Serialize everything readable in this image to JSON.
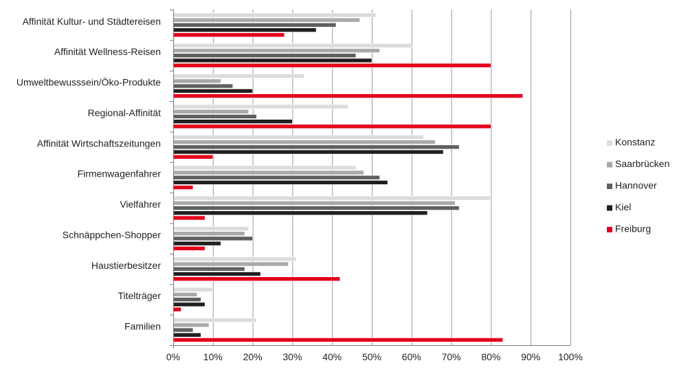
{
  "chart_data": {
    "type": "bar",
    "orientation": "horizontal",
    "categories": [
      "Affinität Kultur- und Städtereisen",
      "Affinität Wellness-Reisen",
      "Umweltbewusssein/Öko-Produkte",
      "Regional-Affinität",
      "Affinität Wirtschaftszeitungen",
      "Firmenwagenfahrer",
      "Vielfahrer",
      "Schnäppchen-Shopper",
      "Haustierbesitzer",
      "Titelträger",
      "Familien"
    ],
    "series": [
      {
        "name": "Konstanz",
        "color": "#dcdcdc",
        "values": [
          51,
          60,
          33,
          44,
          63,
          46,
          80,
          19,
          31,
          10,
          21
        ]
      },
      {
        "name": "Saarbrücken",
        "color": "#a9a9a9",
        "values": [
          47,
          52,
          12,
          19,
          66,
          48,
          71,
          18,
          29,
          6,
          9
        ]
      },
      {
        "name": "Hannover",
        "color": "#5f5f5f",
        "values": [
          41,
          46,
          15,
          21,
          72,
          52,
          72,
          20,
          18,
          7,
          5
        ]
      },
      {
        "name": "Kiel",
        "color": "#1f1f1f",
        "values": [
          36,
          50,
          20,
          30,
          68,
          54,
          64,
          12,
          22,
          8,
          7
        ]
      },
      {
        "name": "Freiburg",
        "color": "#e3001b",
        "values": [
          28,
          80,
          88,
          80,
          10,
          5,
          8,
          8,
          42,
          2,
          83
        ]
      }
    ],
    "x_ticks": [
      "0%",
      "10%",
      "20%",
      "30%",
      "40%",
      "50%",
      "60%",
      "70%",
      "80%",
      "90%",
      "100%"
    ],
    "xlim": [
      0,
      100
    ],
    "grid": true,
    "legend_position": "right"
  }
}
